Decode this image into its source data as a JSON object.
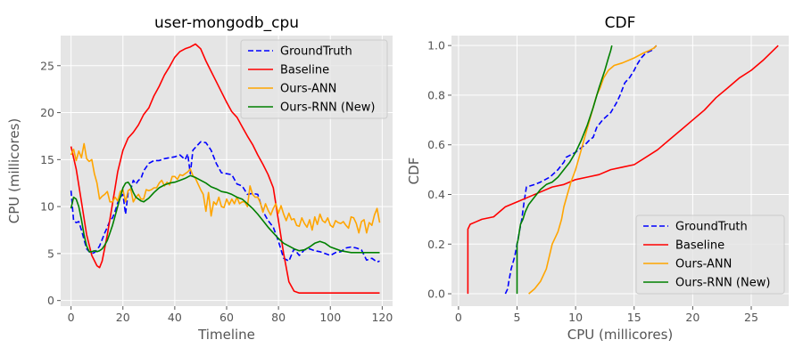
{
  "chart_data": [
    {
      "type": "line",
      "title": "user-mongodb_cpu",
      "xlabel": "Timeline",
      "ylabel": "CPU (millicores)",
      "xlim": [
        -4,
        124
      ],
      "ylim": [
        -0.6,
        28.2
      ],
      "xticks": [
        0,
        20,
        40,
        60,
        80,
        100,
        120
      ],
      "yticks": [
        0,
        5,
        10,
        15,
        20,
        25
      ],
      "grid": true,
      "legend": "top-right",
      "series": [
        {
          "name": "GroundTruth",
          "color": "#0000ff",
          "dash": "dashed",
          "x": [
            0,
            1,
            2,
            3,
            4,
            5,
            6,
            7,
            8,
            9,
            10,
            11,
            12,
            13,
            14,
            15,
            16,
            17,
            18,
            19,
            20,
            21,
            22,
            23,
            24,
            25,
            26,
            27,
            28,
            29,
            30,
            32,
            34,
            36,
            38,
            40,
            42,
            44,
            45,
            46,
            47,
            48,
            50,
            52,
            54,
            56,
            58,
            60,
            62,
            64,
            66,
            68,
            70,
            72,
            74,
            76,
            78,
            80,
            82,
            84,
            86,
            88,
            90,
            92,
            94,
            96,
            98,
            100,
            102,
            104,
            106,
            108,
            110,
            112,
            114,
            116,
            118,
            119
          ],
          "y": [
            11.7,
            8.5,
            8.3,
            8.4,
            7.5,
            6.5,
            5.5,
            5.2,
            5.0,
            5.1,
            5.4,
            5.8,
            6.5,
            7.2,
            7.8,
            8.5,
            8.8,
            9.5,
            10.4,
            11.0,
            11.3,
            9.2,
            11.5,
            11.8,
            12.8,
            12.4,
            12.8,
            13.0,
            13.8,
            14.2,
            14.6,
            14.9,
            14.9,
            15.1,
            15.2,
            15.3,
            15.5,
            15.0,
            15.6,
            13.5,
            16.0,
            16.3,
            16.9,
            16.8,
            16.0,
            14.6,
            13.6,
            13.5,
            13.4,
            12.4,
            12.2,
            11.3,
            11.4,
            11.3,
            9.5,
            8.5,
            7.8,
            6.3,
            4.5,
            4.2,
            5.5,
            4.8,
            5.4,
            5.5,
            5.3,
            5.2,
            5.0,
            4.8,
            5.1,
            5.2,
            5.6,
            5.7,
            5.6,
            5.4,
            4.3,
            4.5,
            4.1,
            4.2
          ]
        },
        {
          "name": "Baseline",
          "color": "#ff0000",
          "dash": "solid",
          "x": [
            0,
            2,
            4,
            6,
            8,
            10,
            11,
            12,
            14,
            16,
            18,
            20,
            22,
            24,
            26,
            28,
            30,
            32,
            34,
            36,
            38,
            40,
            42,
            44,
            46,
            48,
            50,
            52,
            54,
            56,
            58,
            60,
            62,
            64,
            66,
            68,
            70,
            72,
            74,
            76,
            78,
            80,
            82,
            84,
            86,
            88,
            90,
            100,
            110,
            119
          ],
          "y": [
            16.4,
            14.0,
            10.5,
            7.0,
            4.8,
            3.7,
            3.5,
            4.2,
            7.0,
            10.3,
            13.7,
            16.0,
            17.3,
            17.9,
            18.7,
            19.8,
            20.5,
            21.8,
            22.8,
            24.0,
            24.9,
            25.9,
            26.5,
            26.8,
            27.0,
            27.3,
            26.8,
            25.5,
            24.4,
            23.3,
            22.2,
            21.1,
            20.1,
            19.5,
            18.5,
            17.5,
            16.6,
            15.5,
            14.5,
            13.4,
            12.0,
            8.5,
            5.0,
            2.0,
            1.0,
            0.8,
            0.8,
            0.8,
            0.8,
            0.8
          ]
        },
        {
          "name": "Ours-ANN",
          "color": "#ffa500",
          "dash": "solid",
          "x": [
            0,
            1,
            2,
            3,
            4,
            5,
            6,
            7,
            8,
            9,
            10,
            11,
            12,
            13,
            14,
            15,
            16,
            17,
            18,
            19,
            20,
            21,
            22,
            23,
            24,
            25,
            26,
            27,
            28,
            29,
            30,
            31,
            32,
            33,
            34,
            35,
            36,
            37,
            38,
            39,
            40,
            41,
            42,
            43,
            44,
            45,
            46,
            47,
            48,
            49,
            50,
            51,
            52,
            53,
            54,
            55,
            56,
            57,
            58,
            59,
            60,
            61,
            62,
            63,
            64,
            65,
            66,
            67,
            68,
            69,
            70,
            71,
            72,
            73,
            74,
            75,
            76,
            77,
            78,
            79,
            80,
            81,
            82,
            83,
            84,
            85,
            86,
            87,
            88,
            89,
            90,
            91,
            92,
            93,
            94,
            95,
            96,
            97,
            98,
            99,
            100,
            101,
            102,
            103,
            104,
            105,
            106,
            107,
            108,
            109,
            110,
            111,
            112,
            113,
            114,
            115,
            116,
            117,
            118,
            119
          ],
          "y": [
            15.5,
            16.1,
            14.9,
            15.9,
            15.2,
            16.7,
            15.1,
            14.8,
            15.0,
            13.5,
            12.5,
            10.8,
            11.1,
            11.3,
            11.6,
            10.5,
            10.5,
            11.0,
            10.6,
            11.6,
            11.8,
            10.5,
            11.7,
            11.9,
            10.5,
            11.0,
            11.3,
            10.8,
            10.8,
            11.8,
            11.7,
            11.8,
            12.0,
            12.0,
            12.5,
            12.8,
            12.2,
            12.6,
            12.3,
            13.2,
            13.2,
            12.9,
            13.4,
            13.3,
            13.5,
            13.7,
            14.0,
            13.3,
            13.0,
            12.4,
            11.8,
            11.3,
            9.5,
            11.5,
            9.0,
            10.5,
            10.2,
            11.0,
            10.0,
            9.9,
            10.8,
            10.2,
            10.8,
            10.3,
            11.0,
            10.3,
            10.5,
            10.5,
            10.0,
            12.2,
            11.3,
            11.0,
            11.0,
            10.4,
            9.4,
            10.3,
            9.6,
            9.1,
            9.8,
            10.3,
            9.3,
            10.1,
            9.2,
            8.5,
            9.3,
            8.6,
            8.7,
            8.0,
            7.9,
            8.8,
            8.2,
            7.8,
            8.6,
            7.5,
            8.9,
            8.1,
            9.2,
            8.5,
            8.3,
            8.8,
            8.0,
            7.8,
            8.5,
            8.3,
            8.2,
            8.4,
            8.0,
            7.7,
            8.9,
            8.8,
            8.2,
            7.2,
            8.4,
            8.6,
            7.2,
            8.3,
            8.0,
            9.1,
            9.8,
            8.3
          ]
        },
        {
          "name": "Ours-RNN (New)",
          "color": "#008000",
          "dash": "solid",
          "x": [
            0,
            1,
            2,
            3,
            4,
            5,
            6,
            7,
            8,
            9,
            10,
            11,
            12,
            13,
            14,
            15,
            16,
            17,
            18,
            19,
            20,
            21,
            22,
            23,
            24,
            25,
            26,
            27,
            28,
            29,
            30,
            32,
            34,
            36,
            38,
            40,
            42,
            44,
            46,
            48,
            50,
            52,
            54,
            56,
            58,
            60,
            62,
            64,
            66,
            68,
            70,
            72,
            74,
            76,
            78,
            80,
            82,
            84,
            86,
            88,
            90,
            92,
            94,
            96,
            98,
            100,
            104,
            108,
            112,
            116,
            119
          ],
          "y": [
            9.8,
            11.0,
            10.8,
            10.0,
            8.6,
            7.0,
            5.8,
            5.2,
            5.2,
            5.3,
            5.2,
            5.3,
            5.5,
            5.9,
            6.4,
            7.2,
            8.0,
            9.0,
            10.0,
            11.0,
            12.0,
            12.5,
            12.6,
            12.2,
            11.5,
            11.0,
            10.8,
            10.6,
            10.5,
            10.7,
            10.9,
            11.5,
            12.0,
            12.3,
            12.5,
            12.6,
            12.8,
            13.0,
            13.3,
            13.1,
            12.8,
            12.5,
            12.1,
            11.9,
            11.6,
            11.5,
            11.3,
            11.0,
            10.8,
            10.3,
            9.8,
            9.2,
            8.5,
            7.8,
            7.2,
            6.6,
            6.1,
            5.8,
            5.5,
            5.3,
            5.4,
            5.7,
            6.1,
            6.3,
            6.1,
            5.7,
            5.3,
            5.1,
            5.1,
            5.1,
            5.1
          ]
        }
      ]
    },
    {
      "type": "line",
      "title": "CDF",
      "xlabel": "CPU (millicores)",
      "ylabel": "CDF",
      "xlim": [
        -0.6,
        28.2
      ],
      "ylim": [
        -0.05,
        1.04
      ],
      "xticks": [
        0,
        5,
        10,
        15,
        20,
        25
      ],
      "yticks": [
        0.0,
        0.2,
        0.4,
        0.6,
        0.8,
        1.0
      ],
      "ytick_labels": [
        "0.0",
        "0.2",
        "0.4",
        "0.6",
        "0.8",
        "1.0"
      ],
      "grid": true,
      "legend": "bottom-right",
      "series": [
        {
          "name": "GroundTruth",
          "color": "#0000ff",
          "dash": "dashed",
          "x": [
            4.0,
            4.2,
            4.3,
            4.5,
            4.8,
            5.0,
            5.2,
            5.4,
            5.6,
            5.8,
            6.5,
            7.0,
            7.8,
            8.5,
            9.0,
            9.2,
            10.0,
            10.8,
            11.2,
            11.5,
            11.8,
            12.3,
            13.0,
            13.5,
            13.8,
            14.2,
            14.6,
            15.0,
            15.2,
            15.6,
            16.0,
            16.5,
            16.9
          ],
          "y": [
            0.0,
            0.02,
            0.05,
            0.1,
            0.15,
            0.2,
            0.25,
            0.3,
            0.37,
            0.43,
            0.44,
            0.45,
            0.47,
            0.5,
            0.53,
            0.55,
            0.57,
            0.6,
            0.62,
            0.63,
            0.67,
            0.7,
            0.73,
            0.77,
            0.8,
            0.85,
            0.87,
            0.9,
            0.92,
            0.95,
            0.97,
            0.98,
            1.0
          ]
        },
        {
          "name": "Baseline",
          "color": "#ff0000",
          "dash": "solid",
          "x": [
            0.8,
            0.8,
            1.0,
            1.5,
            2.0,
            3.0,
            3.5,
            4.0,
            5.0,
            6.0,
            7.0,
            8.0,
            9.0,
            10.0,
            11.0,
            12.0,
            13.0,
            14.0,
            15.0,
            16.0,
            17.0,
            18.0,
            19.0,
            20.0,
            21.0,
            22.0,
            23.0,
            24.0,
            25.0,
            26.0,
            27.3
          ],
          "y": [
            0.0,
            0.26,
            0.28,
            0.29,
            0.3,
            0.31,
            0.33,
            0.35,
            0.37,
            0.39,
            0.41,
            0.43,
            0.44,
            0.46,
            0.47,
            0.48,
            0.5,
            0.51,
            0.52,
            0.55,
            0.58,
            0.62,
            0.66,
            0.7,
            0.74,
            0.79,
            0.83,
            0.87,
            0.9,
            0.94,
            1.0
          ]
        },
        {
          "name": "Ours-ANN",
          "color": "#ffa500",
          "dash": "solid",
          "x": [
            6.0,
            6.5,
            7.0,
            7.5,
            8.0,
            8.5,
            8.8,
            9.0,
            9.3,
            9.6,
            10.0,
            10.3,
            10.6,
            10.9,
            11.2,
            11.5,
            11.8,
            12.1,
            12.4,
            12.8,
            13.3,
            14.0,
            15.0,
            15.8,
            16.3,
            16.7,
            16.9
          ],
          "y": [
            0.0,
            0.02,
            0.05,
            0.1,
            0.2,
            0.25,
            0.3,
            0.35,
            0.4,
            0.45,
            0.5,
            0.55,
            0.6,
            0.65,
            0.7,
            0.75,
            0.8,
            0.83,
            0.87,
            0.9,
            0.92,
            0.93,
            0.95,
            0.97,
            0.98,
            0.99,
            1.0
          ]
        },
        {
          "name": "Ours-RNN (New)",
          "color": "#008000",
          "dash": "solid",
          "x": [
            5.0,
            5.0,
            5.1,
            5.2,
            5.3,
            5.5,
            5.7,
            6.0,
            6.5,
            7.0,
            7.5,
            8.0,
            8.5,
            9.0,
            9.5,
            10.0,
            10.5,
            11.0,
            11.5,
            12.0,
            12.5,
            12.8,
            13.0,
            13.1
          ],
          "y": [
            0.0,
            0.2,
            0.22,
            0.25,
            0.28,
            0.3,
            0.33,
            0.36,
            0.39,
            0.42,
            0.44,
            0.45,
            0.47,
            0.5,
            0.53,
            0.57,
            0.62,
            0.68,
            0.75,
            0.83,
            0.9,
            0.95,
            0.98,
            1.0
          ]
        }
      ]
    }
  ]
}
